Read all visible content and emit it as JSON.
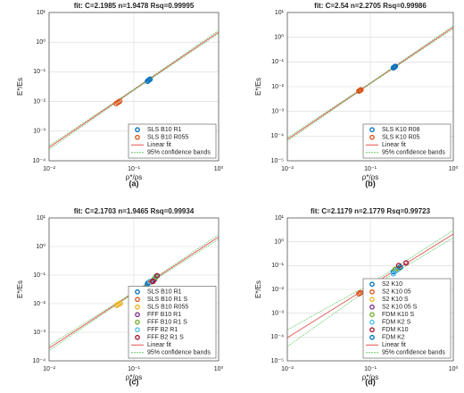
{
  "chart_data": [
    {
      "type": "scatter",
      "title": "fit: C=2.1985 n=1.9478 Rsq=0.99995",
      "caption": "(a)",
      "xlabel": "ρ*/ρs",
      "ylabel": "E*/Es",
      "xscale": "log",
      "yscale": "log",
      "grid": true,
      "legend": "lower right",
      "xlim": [
        0.01,
        1
      ],
      "xticks": [
        {
          "value": 0.01,
          "label": "10⁻²"
        },
        {
          "value": 0.1,
          "label": "10⁻¹"
        },
        {
          "value": 1,
          "label": "10⁰"
        }
      ],
      "ylim": [
        0.0001,
        10
      ],
      "yticks": [
        {
          "value": 0.0001,
          "label": "10⁻⁴"
        },
        {
          "value": 0.001,
          "label": "10⁻³"
        },
        {
          "value": 0.01,
          "label": "10⁻²"
        },
        {
          "value": 0.1,
          "label": "10⁻¹"
        },
        {
          "value": 1,
          "label": "10⁰"
        },
        {
          "value": 10,
          "label": "10¹"
        }
      ],
      "series": [
        {
          "name": "SLS B10 R1",
          "kind": "scatter",
          "color": "#0072bd",
          "x": [
            0.145,
            0.15,
            0.155
          ],
          "values": [
            0.048,
            0.052,
            0.056
          ]
        },
        {
          "name": "SLS B10 R055",
          "kind": "scatter",
          "color": "#d95319",
          "x": [
            0.062,
            0.065,
            0.068
          ],
          "values": [
            0.0085,
            0.0093,
            0.0101
          ]
        },
        {
          "name": "Linear fit",
          "kind": "line",
          "color": "#e05050",
          "x": [
            0.01,
            0.1,
            1
          ],
          "values": [
            0.00028,
            0.0248,
            2.1985
          ]
        },
        {
          "name": "95% confidence bands",
          "kind": "band",
          "color": "#66c866",
          "x": [
            0.01,
            0.1,
            1
          ],
          "upper": [
            0.00032,
            0.026,
            2.5
          ],
          "lower": [
            0.00024,
            0.0236,
            1.95
          ]
        }
      ]
    },
    {
      "type": "scatter",
      "title": "fit: C=2.54 n=2.2705 Rsq=0.99986",
      "caption": "(b)",
      "xlabel": "ρ*/ρs",
      "ylabel": "E*/Es",
      "xscale": "log",
      "yscale": "log",
      "grid": true,
      "legend": "lower right",
      "xlim": [
        0.01,
        1
      ],
      "xticks": [
        {
          "value": 0.01,
          "label": "10⁻²"
        },
        {
          "value": 0.1,
          "label": "10⁻¹"
        },
        {
          "value": 1,
          "label": "10⁰"
        }
      ],
      "ylim": [
        1e-05,
        10
      ],
      "yticks": [
        {
          "value": 1e-05,
          "label": "10⁻⁵"
        },
        {
          "value": 0.0001,
          "label": "10⁻⁴"
        },
        {
          "value": 0.001,
          "label": "10⁻³"
        },
        {
          "value": 0.01,
          "label": "10⁻²"
        },
        {
          "value": 0.1,
          "label": "10⁻¹"
        },
        {
          "value": 1,
          "label": "10⁰"
        },
        {
          "value": 10,
          "label": "10¹"
        }
      ],
      "series": [
        {
          "name": "SLS K10 R08",
          "kind": "scatter",
          "color": "#0072bd",
          "x": [
            0.19,
            0.195,
            0.2
          ],
          "values": [
            0.058,
            0.062,
            0.066
          ]
        },
        {
          "name": "SLS K10 R05",
          "kind": "scatter",
          "color": "#d95319",
          "x": [
            0.073,
            0.075,
            0.077
          ],
          "values": [
            0.0066,
            0.007,
            0.0074
          ]
        },
        {
          "name": "Linear fit",
          "kind": "line",
          "color": "#e05050",
          "x": [
            0.01,
            0.1,
            1
          ],
          "values": [
            7.3e-05,
            0.0136,
            2.54
          ]
        },
        {
          "name": "95% confidence bands",
          "kind": "band",
          "color": "#66c866",
          "x": [
            0.01,
            0.1,
            1
          ],
          "upper": [
            8.5e-05,
            0.0143,
            2.9
          ],
          "lower": [
            6.3e-05,
            0.0129,
            2.2
          ]
        }
      ]
    },
    {
      "type": "scatter",
      "title": "fit: C=2.1703 n=1.9465 Rsq=0.99934",
      "caption": "(c)",
      "xlabel": "ρ*/ρs",
      "ylabel": "E*/Es",
      "xscale": "log",
      "yscale": "log",
      "grid": true,
      "legend": "lower right",
      "xlim": [
        0.01,
        1
      ],
      "xticks": [
        {
          "value": 0.01,
          "label": "10⁻²"
        },
        {
          "value": 0.1,
          "label": "10⁻¹"
        },
        {
          "value": 1,
          "label": "10⁰"
        }
      ],
      "ylim": [
        0.0001,
        10
      ],
      "yticks": [
        {
          "value": 0.0001,
          "label": "10⁻⁴"
        },
        {
          "value": 0.001,
          "label": "10⁻³"
        },
        {
          "value": 0.01,
          "label": "10⁻²"
        },
        {
          "value": 0.1,
          "label": "10⁻¹"
        },
        {
          "value": 1,
          "label": "10⁰"
        },
        {
          "value": 10,
          "label": "10¹"
        }
      ],
      "series": [
        {
          "name": "SLS B10 R1",
          "kind": "scatter",
          "color": "#0072bd",
          "x": [
            0.145,
            0.15
          ],
          "values": [
            0.05,
            0.055
          ]
        },
        {
          "name": "SLS B10 R1 S",
          "kind": "scatter",
          "color": "#d95319",
          "x": [
            0.16,
            0.165
          ],
          "values": [
            0.058,
            0.062
          ]
        },
        {
          "name": "SLS B10 R055",
          "kind": "scatter",
          "color": "#edb120",
          "x": [
            0.063,
            0.066,
            0.069
          ],
          "values": [
            0.0088,
            0.0095,
            0.0102
          ]
        },
        {
          "name": "FFF B10 R1",
          "kind": "scatter",
          "color": "#7e2f8e",
          "x": [
            0.17,
            0.175
          ],
          "values": [
            0.065,
            0.07
          ]
        },
        {
          "name": "FFF B10 R1 S",
          "kind": "scatter",
          "color": "#77ac30",
          "x": [
            0.178,
            0.182
          ],
          "values": [
            0.08,
            0.088
          ]
        },
        {
          "name": "FFF B2 R1",
          "kind": "scatter",
          "color": "#4dbeee",
          "x": [
            0.155,
            0.185
          ],
          "values": [
            0.06,
            0.092
          ]
        },
        {
          "name": "FFF B2 R1 S",
          "kind": "scatter",
          "color": "#a2142f",
          "x": [
            0.168,
            0.188
          ],
          "values": [
            0.06,
            0.095
          ]
        },
        {
          "name": "Linear fit",
          "kind": "line",
          "color": "#e05050",
          "x": [
            0.01,
            0.1,
            1
          ],
          "values": [
            0.000278,
            0.0245,
            2.1703
          ]
        },
        {
          "name": "95% confidence bands",
          "kind": "band",
          "color": "#66c866",
          "x": [
            0.01,
            0.1,
            1
          ],
          "upper": [
            0.00034,
            0.0258,
            2.6
          ],
          "lower": [
            0.00023,
            0.0233,
            1.8
          ]
        }
      ]
    },
    {
      "type": "scatter",
      "title": "fit: C=2.1179 n=2.1779 Rsq=0.99723",
      "caption": "(d)",
      "xlabel": "ρ*/ρs",
      "ylabel": "E*/Es",
      "xscale": "log",
      "yscale": "log",
      "grid": true,
      "legend": "lower right",
      "xlim": [
        0.01,
        1
      ],
      "xticks": [
        {
          "value": 0.01,
          "label": "10⁻²"
        },
        {
          "value": 0.1,
          "label": "10⁻¹"
        },
        {
          "value": 1,
          "label": "10⁰"
        }
      ],
      "ylim": [
        1e-05,
        10
      ],
      "yticks": [
        {
          "value": 1e-05,
          "label": "10⁻⁵"
        },
        {
          "value": 0.0001,
          "label": "10⁻⁴"
        },
        {
          "value": 0.001,
          "label": "10⁻³"
        },
        {
          "value": 0.01,
          "label": "10⁻²"
        },
        {
          "value": 0.1,
          "label": "10⁻¹"
        },
        {
          "value": 1,
          "label": "10⁰"
        },
        {
          "value": 10,
          "label": "10¹"
        }
      ],
      "series": [
        {
          "name": "S2 K10",
          "kind": "scatter",
          "color": "#0072bd",
          "x": [
            0.19,
            0.2
          ],
          "values": [
            0.055,
            0.06
          ]
        },
        {
          "name": "S2 K10 05",
          "kind": "scatter",
          "color": "#d95319",
          "x": [
            0.073,
            0.076
          ],
          "values": [
            0.0065,
            0.0072
          ]
        },
        {
          "name": "S2 K10 S",
          "kind": "scatter",
          "color": "#edb120",
          "x": [
            0.205,
            0.21
          ],
          "values": [
            0.065,
            0.07
          ]
        },
        {
          "name": "S2 K10 05 S",
          "kind": "scatter",
          "color": "#7e2f8e",
          "x": [
            0.1
          ],
          "values": [
            0.015
          ]
        },
        {
          "name": "FDM K10 S",
          "kind": "scatter",
          "color": "#77ac30",
          "x": [
            0.2,
            0.22
          ],
          "values": [
            0.07,
            0.075
          ]
        },
        {
          "name": "FDM K2 S",
          "kind": "scatter",
          "color": "#4dbeee",
          "x": [
            0.19,
            0.21
          ],
          "values": [
            0.045,
            0.065
          ]
        },
        {
          "name": "FDM K10",
          "kind": "scatter",
          "color": "#a2142f",
          "x": [
            0.22,
            0.27
          ],
          "values": [
            0.1,
            0.13
          ]
        },
        {
          "name": "FDM K2",
          "kind": "scatter",
          "color": "#0072bd",
          "x": [
            0.23
          ],
          "values": [
            0.085
          ]
        },
        {
          "name": "Linear fit",
          "kind": "line",
          "color": "#e05050",
          "x": [
            0.01,
            0.1,
            1
          ],
          "values": [
            9.3e-05,
            0.0141,
            2.1179
          ]
        },
        {
          "name": "95% confidence bands",
          "kind": "band",
          "color": "#66c866",
          "x": [
            0.01,
            0.1,
            1
          ],
          "upper": [
            0.0002,
            0.017,
            3.0
          ],
          "lower": [
            4e-05,
            0.0117,
            1.5
          ]
        }
      ]
    }
  ]
}
